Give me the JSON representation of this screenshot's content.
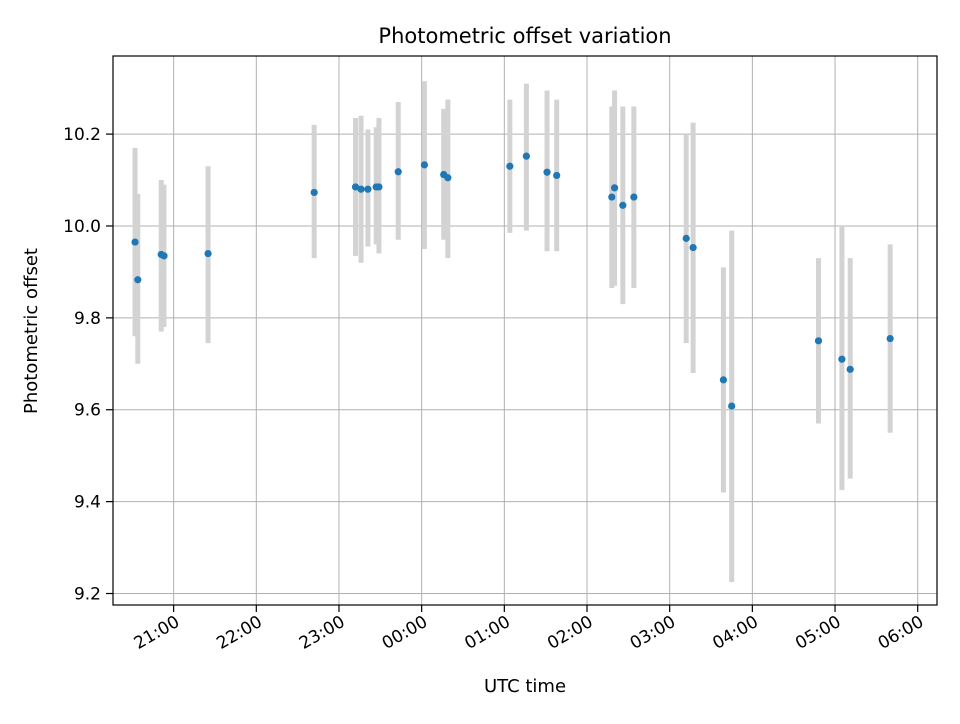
{
  "chart_data": {
    "type": "scatter",
    "title": "Photometric offset variation",
    "xlabel": "UTC time",
    "ylabel": "Photometric offset",
    "x_axis_kind": "time",
    "x_ticks": [
      "21:00",
      "22:00",
      "23:00",
      "00:00",
      "01:00",
      "02:00",
      "03:00",
      "04:00",
      "05:00",
      "06:00"
    ],
    "y_ticks": [
      "9.2",
      "9.4",
      "9.6",
      "9.8",
      "10.0",
      "10.2"
    ],
    "xlim": [
      "20:16",
      "06:14"
    ],
    "ylim": [
      9.175,
      10.37
    ],
    "grid": true,
    "colors": {
      "point": "#1f77b4",
      "errorbar": "#d3d3d3",
      "grid": "#b0b0b0"
    },
    "series": [
      {
        "points": [
          {
            "x": "20:32",
            "y": 9.965,
            "lo": 9.76,
            "hi": 10.17
          },
          {
            "x": "20:34",
            "y": 9.883,
            "lo": 9.7,
            "hi": 10.07
          },
          {
            "x": "20:51",
            "y": 9.938,
            "lo": 9.77,
            "hi": 10.1
          },
          {
            "x": "20:53",
            "y": 9.935,
            "lo": 9.78,
            "hi": 10.09
          },
          {
            "x": "21:25",
            "y": 9.94,
            "lo": 9.745,
            "hi": 10.13
          },
          {
            "x": "22:42",
            "y": 10.073,
            "lo": 9.93,
            "hi": 10.22
          },
          {
            "x": "23:12",
            "y": 10.085,
            "lo": 9.935,
            "hi": 10.235
          },
          {
            "x": "23:16",
            "y": 10.08,
            "lo": 9.92,
            "hi": 10.24
          },
          {
            "x": "23:21",
            "y": 10.08,
            "lo": 9.955,
            "hi": 10.21
          },
          {
            "x": "23:27",
            "y": 10.085,
            "lo": 9.96,
            "hi": 10.215
          },
          {
            "x": "23:29",
            "y": 10.085,
            "lo": 9.94,
            "hi": 10.235
          },
          {
            "x": "23:43",
            "y": 10.118,
            "lo": 9.97,
            "hi": 10.27
          },
          {
            "x": "00:02",
            "y": 10.133,
            "lo": 9.95,
            "hi": 10.315
          },
          {
            "x": "00:16",
            "y": 10.112,
            "lo": 9.97,
            "hi": 10.255
          },
          {
            "x": "00:19",
            "y": 10.105,
            "lo": 9.93,
            "hi": 10.275
          },
          {
            "x": "01:04",
            "y": 10.13,
            "lo": 9.985,
            "hi": 10.275
          },
          {
            "x": "01:16",
            "y": 10.152,
            "lo": 9.99,
            "hi": 10.31
          },
          {
            "x": "01:31",
            "y": 10.117,
            "lo": 9.945,
            "hi": 10.295
          },
          {
            "x": "01:38",
            "y": 10.11,
            "lo": 9.945,
            "hi": 10.275
          },
          {
            "x": "02:18",
            "y": 10.063,
            "lo": 9.865,
            "hi": 10.26
          },
          {
            "x": "02:20",
            "y": 10.083,
            "lo": 9.87,
            "hi": 10.295
          },
          {
            "x": "02:26",
            "y": 10.045,
            "lo": 9.83,
            "hi": 10.26
          },
          {
            "x": "02:34",
            "y": 10.063,
            "lo": 9.865,
            "hi": 10.26
          },
          {
            "x": "03:12",
            "y": 9.973,
            "lo": 9.745,
            "hi": 10.2
          },
          {
            "x": "03:17",
            "y": 9.953,
            "lo": 9.68,
            "hi": 10.225
          },
          {
            "x": "03:39",
            "y": 9.665,
            "lo": 9.42,
            "hi": 9.91
          },
          {
            "x": "03:45",
            "y": 9.608,
            "lo": 9.225,
            "hi": 9.99
          },
          {
            "x": "04:48",
            "y": 9.75,
            "lo": 9.57,
            "hi": 9.93
          },
          {
            "x": "05:05",
            "y": 9.71,
            "lo": 9.425,
            "hi": 10.0
          },
          {
            "x": "05:11",
            "y": 9.688,
            "lo": 9.45,
            "hi": 9.93
          },
          {
            "x": "05:40",
            "y": 9.755,
            "lo": 9.55,
            "hi": 9.96
          }
        ]
      }
    ]
  }
}
